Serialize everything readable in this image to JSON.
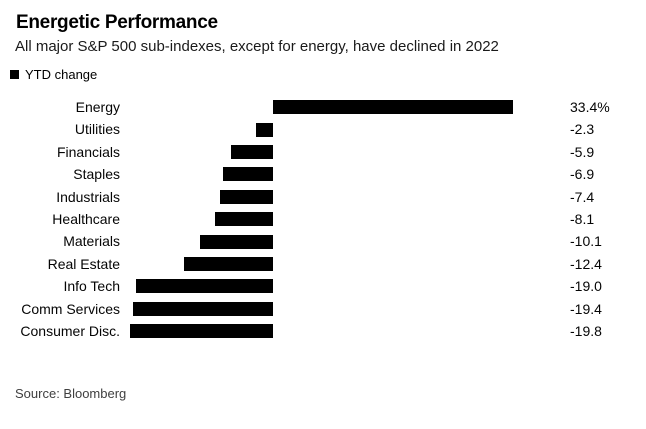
{
  "header": {
    "title": "Energetic Performance",
    "subtitle": "All major S&P 500 sub-indexes, except for energy, have declined in 2022"
  },
  "legend": {
    "label": "YTD change",
    "marker_icon": "black-square-icon",
    "marker_color": "#000000"
  },
  "chart_data": {
    "type": "bar",
    "orientation": "horizontal",
    "title": "Energetic Performance",
    "subtitle": "All major S&P 500 sub-indexes, except for energy, have declined in 2022",
    "legend_entries": [
      "YTD change"
    ],
    "legend_position": "top-left",
    "categories": [
      "Energy",
      "Utilities",
      "Financials",
      "Staples",
      "Industrials",
      "Healthcare",
      "Materials",
      "Real Estate",
      "Info Tech",
      "Comm Services",
      "Consumer Disc."
    ],
    "values": [
      33.4,
      -2.3,
      -5.9,
      -6.9,
      -7.4,
      -8.1,
      -10.1,
      -12.4,
      -19.0,
      -19.4,
      -19.8
    ],
    "value_labels": [
      "33.4%",
      "-2.3",
      "-5.9",
      "-6.9",
      "-7.4",
      "-8.1",
      "-10.1",
      "-12.4",
      "-19.0",
      "-19.4",
      "-19.8"
    ],
    "baseline": 0,
    "xlim": [
      -21,
      41
    ],
    "grid": false,
    "axes_visible": false,
    "bar_color": "#000000"
  },
  "source": {
    "text": "Source: Bloomberg"
  },
  "colors": {
    "background": "#ffffff",
    "text": "#000000",
    "bar": "#000000",
    "source_text": "#3f3f3f"
  }
}
